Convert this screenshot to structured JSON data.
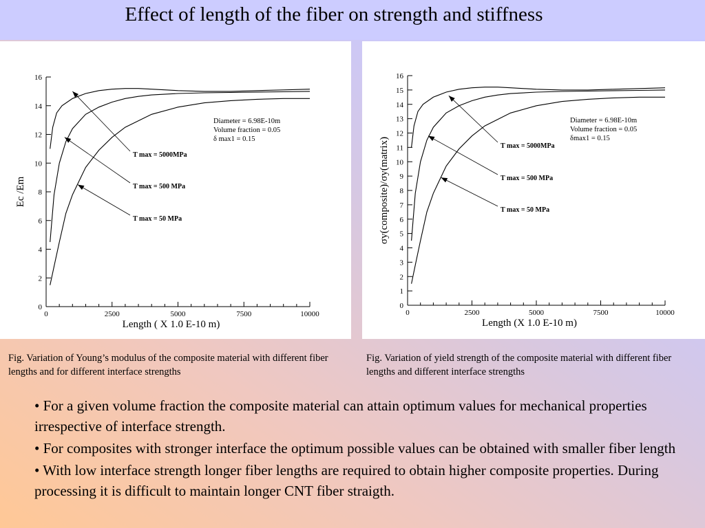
{
  "title": "Effect of length of the fiber on strength and stiffness",
  "captions": {
    "left": "Fig.  Variation of Young’s modulus of the composite material with different fiber lengths and for different interface strengths",
    "right": "Fig.  Variation of yield strength of the composite material with different fiber lengths and different interface strengths"
  },
  "bullets": [
    "• For a given volume fraction the composite material can attain optimum values for mechanical properties irrespective of interface strength.",
    "• For composites with  stronger interface the optimum possible values can be obtained with smaller fiber length",
    "• With low interface strength longer fiber lengths are required to obtain higher composite properties. During processing it is difficult to maintain longer CNT fiber straigth."
  ],
  "chart_data": [
    {
      "type": "line",
      "xlabel": "Length ( X 1.0 E-10 m)",
      "ylabel": "Ec /Em",
      "xlim": [
        0,
        10000
      ],
      "ylim": [
        0,
        16
      ],
      "xticks": [
        0,
        2500,
        5000,
        7500,
        10000
      ],
      "yticks": [
        0,
        2,
        4,
        6,
        8,
        10,
        12,
        14,
        16
      ],
      "annotation_lines": [
        "Diameter = 6.98E-10m",
        "Volume fraction = 0.05",
        "δ max1 = 0.15"
      ],
      "series": [
        {
          "name": "T max = 5000MPa",
          "x": [
            150,
            250,
            400,
            600,
            1000,
            1500,
            2000,
            2500,
            3000,
            3500,
            4000,
            5000,
            6000,
            7000,
            8000,
            9000,
            10000
          ],
          "y": [
            11.0,
            12.5,
            13.5,
            14.0,
            14.5,
            14.85,
            15.05,
            15.15,
            15.2,
            15.2,
            15.15,
            15.05,
            15.0,
            15.0,
            15.05,
            15.1,
            15.15
          ]
        },
        {
          "name": "T max = 500 MPa",
          "x": [
            150,
            300,
            500,
            750,
            1000,
            1500,
            2000,
            2500,
            3000,
            3500,
            4000,
            5000,
            6000,
            7000,
            8000,
            9000,
            10000
          ],
          "y": [
            4.5,
            7.8,
            10.0,
            11.5,
            12.4,
            13.4,
            13.9,
            14.25,
            14.5,
            14.65,
            14.75,
            14.85,
            14.9,
            14.92,
            14.95,
            14.97,
            15.0
          ]
        },
        {
          "name": "T max = 50 MPa",
          "x": [
            150,
            300,
            500,
            750,
            1000,
            1500,
            2000,
            2500,
            3000,
            4000,
            5000,
            6000,
            7000,
            8000,
            9000,
            10000
          ],
          "y": [
            1.5,
            2.8,
            4.5,
            6.5,
            7.8,
            9.7,
            10.9,
            11.8,
            12.5,
            13.4,
            13.9,
            14.2,
            14.35,
            14.45,
            14.5,
            14.5
          ]
        }
      ],
      "series_labels_x": [
        500,
        500,
        500
      ]
    },
    {
      "type": "line",
      "xlabel": "Length (X 1.0 E-10 m)",
      "ylabel": "σy(composite)/σy(matrix)",
      "xlim": [
        0,
        10000
      ],
      "ylim": [
        0,
        16
      ],
      "xticks": [
        0,
        2500,
        5000,
        7500,
        10000
      ],
      "yticks": [
        0,
        1,
        2,
        3,
        4,
        5,
        6,
        7,
        8,
        9,
        10,
        11,
        12,
        13,
        14,
        15,
        16
      ],
      "annotation_lines": [
        "Diameter = 6.98E-10m",
        "Volume fraction = 0.05",
        "δmax1 = 0.15"
      ],
      "series": [
        {
          "name": "T max = 5000MPa",
          "x": [
            150,
            250,
            400,
            600,
            1000,
            1500,
            2000,
            2500,
            3000,
            3500,
            4000,
            5000,
            6000,
            7000,
            8000,
            9000,
            10000
          ],
          "y": [
            11.0,
            12.5,
            13.5,
            14.0,
            14.5,
            14.85,
            15.05,
            15.15,
            15.2,
            15.2,
            15.15,
            15.05,
            15.0,
            15.0,
            15.05,
            15.1,
            15.15
          ]
        },
        {
          "name": "T max = 500 MPa",
          "x": [
            150,
            300,
            500,
            750,
            1000,
            1500,
            2000,
            2500,
            3000,
            3500,
            4000,
            5000,
            6000,
            7000,
            8000,
            9000,
            10000
          ],
          "y": [
            4.5,
            7.8,
            10.0,
            11.5,
            12.4,
            13.4,
            13.9,
            14.25,
            14.5,
            14.65,
            14.75,
            14.85,
            14.9,
            14.92,
            14.95,
            14.97,
            15.0
          ]
        },
        {
          "name": "T max = 50 MPa",
          "x": [
            150,
            300,
            500,
            750,
            1000,
            1500,
            2000,
            2500,
            3000,
            4000,
            5000,
            6000,
            7000,
            8000,
            9000,
            10000
          ],
          "y": [
            1.5,
            2.8,
            4.5,
            6.5,
            7.8,
            9.7,
            10.9,
            11.8,
            12.5,
            13.4,
            13.9,
            14.2,
            14.35,
            14.45,
            14.5,
            14.5
          ]
        }
      ]
    }
  ]
}
